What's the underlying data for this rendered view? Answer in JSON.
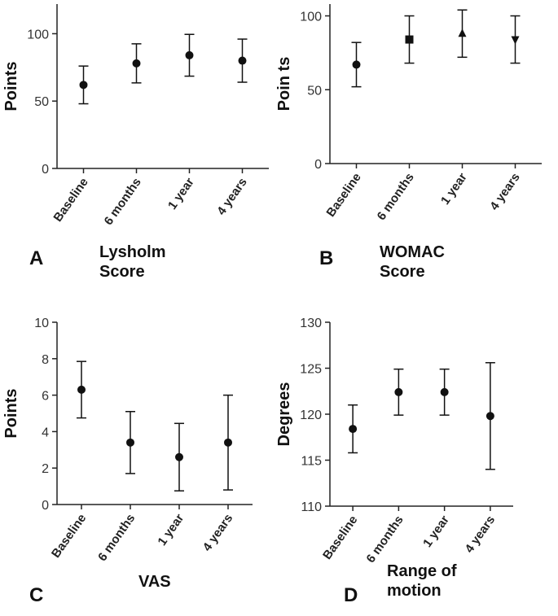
{
  "chart_data": [
    {
      "type": "errorbar",
      "panel": "A",
      "title": "Lysholm Score",
      "ylabel": "Points",
      "categories": [
        "Baseline",
        "6 months",
        "1 year",
        "4 years"
      ],
      "values": [
        62,
        78,
        84,
        80
      ],
      "errors": [
        14,
        14.5,
        15.5,
        16
      ],
      "ylim": [
        0,
        122
      ],
      "yticks": [
        0,
        50,
        100
      ],
      "color": "#111111",
      "marker": "circle"
    },
    {
      "type": "errorbar",
      "panel": "B",
      "title": "WOMAC Score",
      "ylabel": "Poin ts",
      "categories": [
        "Baseline",
        "6 months",
        "1 year",
        "4 years"
      ],
      "values": [
        67,
        84,
        88,
        84
      ],
      "errors": [
        15,
        16,
        16,
        16
      ],
      "ylim": [
        0,
        108
      ],
      "yticks": [
        0,
        50,
        100
      ],
      "color": "#111111",
      "markers": [
        "circle",
        "square",
        "triangle",
        "triangle-down"
      ]
    },
    {
      "type": "errorbar",
      "panel": "C",
      "title": "VAS",
      "ylabel": "Points",
      "categories": [
        "Baseline",
        "6 months",
        "1 year",
        "4 years"
      ],
      "values": [
        6.3,
        3.4,
        2.6,
        3.4
      ],
      "errors": [
        1.55,
        1.7,
        1.85,
        2.6
      ],
      "ylim": [
        0,
        10
      ],
      "yticks": [
        0,
        2,
        4,
        6,
        8,
        10
      ],
      "color": "#111111",
      "marker": "circle"
    },
    {
      "type": "errorbar",
      "panel": "D",
      "title": "Range of motion",
      "ylabel": "Degrees",
      "categories": [
        "Baseline",
        "6 months",
        "1 year",
        "4 years"
      ],
      "values": [
        118.4,
        122.4,
        122.4,
        119.8
      ],
      "errors": [
        2.6,
        2.5,
        2.5,
        5.8
      ],
      "ylim": [
        110,
        130
      ],
      "yticks": [
        110,
        115,
        120,
        125,
        130
      ],
      "color": "#111111",
      "marker": "circle"
    }
  ]
}
